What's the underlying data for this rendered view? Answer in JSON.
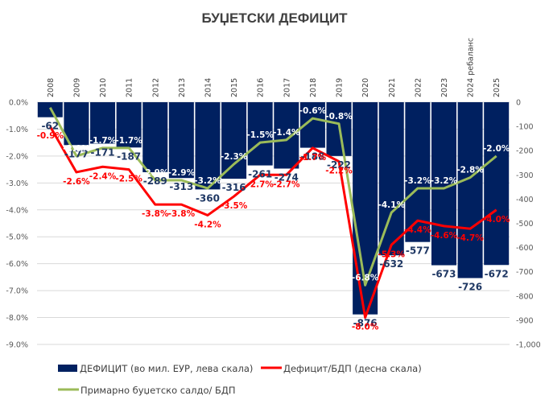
{
  "chart_data": {
    "type": "bar",
    "title": "БУЏЕТСКИ ДЕФИЦИТ",
    "categories": [
      "2008",
      "2009",
      "2010",
      "2011",
      "2012",
      "2013",
      "2014",
      "2015",
      "2016",
      "2017",
      "2018",
      "2019",
      "2020",
      "2021",
      "2022",
      "2023",
      "2024 ребаланс",
      "2025"
    ],
    "left_axis": {
      "ticks": [
        "0.0%",
        "-1.0%",
        "-2.0%",
        "-3.0%",
        "-4.0%",
        "-5.0%",
        "-6.0%",
        "-7.0%",
        "-8.0%",
        "-9.0%"
      ],
      "range": [
        -9,
        0
      ],
      "unit": "%"
    },
    "right_axis": {
      "ticks": [
        "0",
        "-100",
        "-200",
        "-300",
        "-400",
        "-500",
        "-600",
        "-700",
        "-800",
        "-900",
        "-1,000"
      ],
      "range": [
        -1000,
        0
      ]
    },
    "grid": true,
    "legend_position": "bottom",
    "series": [
      {
        "name": "ДЕФИЦИТ (во мил. ЕУР, лева скала)",
        "type": "bar",
        "axis": "right",
        "color": "#002060",
        "values": [
          -62,
          -177,
          -171,
          -187,
          -289,
          -313,
          -360,
          -316,
          -261,
          -274,
          -188,
          -222,
          -876,
          -632,
          -577,
          -673,
          -726,
          -672
        ],
        "labels": [
          "-62",
          "-177",
          "-171",
          "-187",
          "-289",
          "-313",
          "-360",
          "-316",
          "-261",
          "-274",
          "-188",
          "-222",
          "-876",
          "-632",
          "-577",
          "-673",
          "-726",
          "-672"
        ]
      },
      {
        "name": "Дефицит/БДП (десна скала)",
        "type": "line",
        "axis": "left",
        "color": "#FF0000",
        "values": [
          -0.9,
          -2.6,
          -2.4,
          -2.5,
          -3.8,
          -3.8,
          -4.2,
          -3.5,
          -2.7,
          -2.7,
          -1.7,
          -2.2,
          -8.0,
          -5.3,
          -4.4,
          -4.6,
          -4.7,
          -4.0
        ],
        "labels": [
          "-0.9%",
          "-2.6%",
          "-2.4%",
          "-2.5%",
          "-3.8%",
          "-3.8%",
          "-4.2%",
          "-3.5%",
          "-2.7%",
          "-2.7%",
          "-1.7%",
          "-2.2%",
          "-8.0%",
          "-5.3%",
          "-4.4%",
          "-4.6%",
          "-4.7%",
          "-4.0%"
        ]
      },
      {
        "name": "Примарно буџетско салдо/ БДП",
        "type": "line",
        "axis": "left",
        "color": "#9BBB59",
        "values": [
          -0.2,
          -2.0,
          -1.7,
          -1.7,
          -2.9,
          -2.9,
          -3.2,
          -2.3,
          -1.5,
          -1.4,
          -0.6,
          -0.8,
          -6.8,
          -4.1,
          -3.2,
          -3.2,
          -2.8,
          -2.0
        ],
        "labels": [
          "",
          "-2.0%",
          "-1.7%",
          "-1.7%",
          "-2.9%",
          "-2.9%",
          "-3.2%",
          "-2.3%",
          "-1.5%",
          "-1.4%",
          "-0.6%",
          "-0.8%",
          "-6.8%",
          "-4.1%",
          "-3.2%",
          "-3.2%",
          "-2.8%",
          "-2.0%"
        ]
      }
    ]
  }
}
